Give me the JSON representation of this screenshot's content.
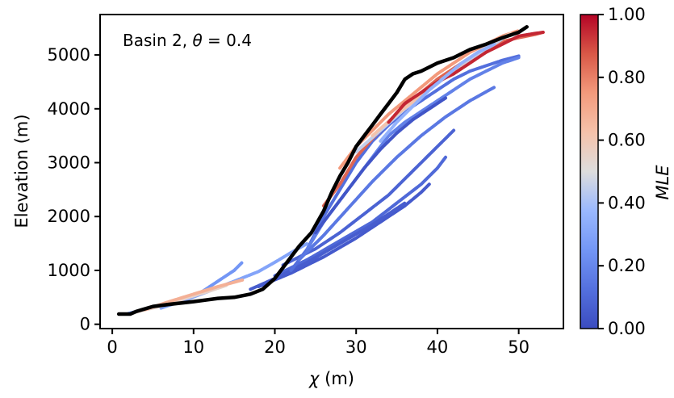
{
  "chart_data": {
    "type": "line",
    "annotation": {
      "prefix": "Basin 2, ",
      "symbol": "θ",
      "suffix": " = 0.4"
    },
    "xlabel": {
      "symbol": "χ",
      "unit": " (m)"
    },
    "ylabel": "Elevation (m)",
    "xlim": [
      -1.5,
      55.5
    ],
    "ylim": [
      -80,
      5750
    ],
    "xticks": [
      0,
      10,
      20,
      30,
      40,
      50
    ],
    "yticks": [
      0,
      1000,
      2000,
      3000,
      4000,
      5000
    ],
    "colorbar": {
      "label": "MLE",
      "range": [
        0,
        1
      ],
      "ticks": [
        "0.00",
        "0.20",
        "0.40",
        "0.60",
        "0.80",
        "1.00"
      ],
      "colormap": "coolwarm",
      "low_color": "#3b4cc0",
      "mid_color": "#dddddd",
      "high_color": "#b40426"
    },
    "main_series": {
      "color": "#000000",
      "x": [
        0.8,
        2.2,
        3,
        5,
        7,
        10,
        13,
        15,
        17,
        18.5,
        20,
        21.5,
        23,
        24.5,
        26,
        27,
        28,
        29,
        30,
        31,
        32,
        33,
        34,
        35,
        36,
        37,
        38,
        40,
        42,
        44,
        46,
        48,
        50,
        51
      ],
      "y": [
        190,
        190,
        240,
        330,
        370,
        420,
        480,
        500,
        560,
        650,
        850,
        1150,
        1450,
        1700,
        2100,
        2450,
        2750,
        3000,
        3300,
        3500,
        3700,
        3900,
        4100,
        4300,
        4550,
        4650,
        4700,
        4850,
        4950,
        5100,
        5200,
        5320,
        5420,
        5520
      ]
    },
    "background_series": [
      {
        "mle": 0.08,
        "x": [
          21,
          25,
          28,
          31,
          34,
          36,
          38,
          40,
          42
        ],
        "y": [
          1100,
          1400,
          1700,
          2050,
          2400,
          2700,
          3000,
          3300,
          3600
        ]
      },
      {
        "mle": 0.1,
        "x": [
          20,
          24,
          28,
          32,
          35,
          38,
          40,
          41
        ],
        "y": [
          900,
          1200,
          1550,
          1900,
          2250,
          2600,
          2900,
          3100
        ]
      },
      {
        "mle": 0.05,
        "x": [
          18,
          22,
          26,
          30,
          33,
          36,
          38,
          39
        ],
        "y": [
          700,
          950,
          1250,
          1600,
          1900,
          2200,
          2450,
          2600
        ]
      },
      {
        "mle": 0.06,
        "x": [
          17,
          20,
          24,
          28,
          32,
          34,
          36
        ],
        "y": [
          650,
          850,
          1150,
          1500,
          1850,
          2050,
          2250
        ]
      },
      {
        "mle": 0.12,
        "x": [
          22,
          24,
          26,
          28,
          30,
          32,
          34,
          36,
          38,
          40,
          42,
          44,
          46,
          48,
          50
        ],
        "y": [
          1000,
          1400,
          2000,
          2500,
          3000,
          3400,
          3700,
          3950,
          4150,
          4350,
          4550,
          4700,
          4800,
          4900,
          4980
        ]
      },
      {
        "mle": 0.18,
        "x": [
          24,
          26,
          28,
          30,
          32,
          34,
          36,
          38,
          40,
          42,
          44,
          46,
          48,
          50
        ],
        "y": [
          1400,
          1900,
          2300,
          2700,
          3100,
          3500,
          3750,
          3950,
          4150,
          4350,
          4550,
          4700,
          4850,
          4950
        ]
      },
      {
        "mle": 0.03,
        "x": [
          25,
          27,
          29,
          31,
          33,
          35,
          37,
          39,
          41
        ],
        "y": [
          1700,
          2100,
          2500,
          2900,
          3250,
          3550,
          3800,
          4000,
          4200
        ]
      },
      {
        "mle": 0.25,
        "x": [
          2,
          5,
          8,
          11,
          13,
          15,
          16
        ],
        "y": [
          200,
          320,
          450,
          600,
          800,
          1000,
          1150
        ]
      },
      {
        "mle": 0.3,
        "x": [
          6,
          9,
          12,
          15,
          18,
          20,
          22,
          24
        ],
        "y": [
          300,
          450,
          620,
          800,
          980,
          1150,
          1330,
          1500
        ]
      },
      {
        "mle": 0.55,
        "x": [
          3,
          6,
          9,
          12,
          14
        ],
        "y": [
          230,
          340,
          480,
          620,
          720
        ]
      },
      {
        "mle": 0.68,
        "x": [
          4,
          7,
          10,
          13,
          16
        ],
        "y": [
          270,
          420,
          560,
          700,
          820
        ]
      },
      {
        "mle": 0.85,
        "x": [
          26,
          28,
          30,
          32,
          34,
          36,
          38,
          40,
          42,
          44,
          46,
          48,
          50,
          52,
          53
        ],
        "y": [
          2200,
          2600,
          3100,
          3450,
          3750,
          4050,
          4300,
          4550,
          4750,
          4950,
          5100,
          5250,
          5320,
          5380,
          5420
        ]
      },
      {
        "mle": 0.75,
        "x": [
          28,
          30,
          32,
          34,
          36,
          38,
          40,
          42,
          44,
          46,
          48,
          50
        ],
        "y": [
          2900,
          3300,
          3600,
          3900,
          4150,
          4400,
          4650,
          4850,
          5050,
          5200,
          5350,
          5450
        ]
      },
      {
        "mle": 0.45,
        "x": [
          30,
          33,
          36,
          39,
          42,
          45,
          48
        ],
        "y": [
          3200,
          3600,
          4000,
          4350,
          4700,
          5000,
          5300
        ]
      },
      {
        "mle": 0.62,
        "x": [
          32,
          35,
          38,
          41,
          44,
          47,
          49
        ],
        "y": [
          3500,
          3900,
          4250,
          4600,
          4950,
          5250,
          5400
        ]
      },
      {
        "mle": 0.95,
        "x": [
          34,
          36,
          38,
          40,
          42,
          44,
          46,
          48,
          50,
          52,
          53
        ],
        "y": [
          3750,
          4100,
          4300,
          4500,
          4650,
          4850,
          5050,
          5200,
          5350,
          5400,
          5420
        ]
      },
      {
        "mle": 0.35,
        "x": [
          33,
          35,
          37,
          39,
          41,
          43,
          45,
          47
        ],
        "y": [
          3400,
          3750,
          4050,
          4350,
          4600,
          4850,
          5050,
          5200
        ]
      },
      {
        "mle": 0.15,
        "x": [
          23,
          26,
          29,
          32,
          35,
          38,
          41,
          44,
          47
        ],
        "y": [
          1200,
          1650,
          2150,
          2650,
          3100,
          3500,
          3850,
          4150,
          4400
        ]
      }
    ]
  }
}
